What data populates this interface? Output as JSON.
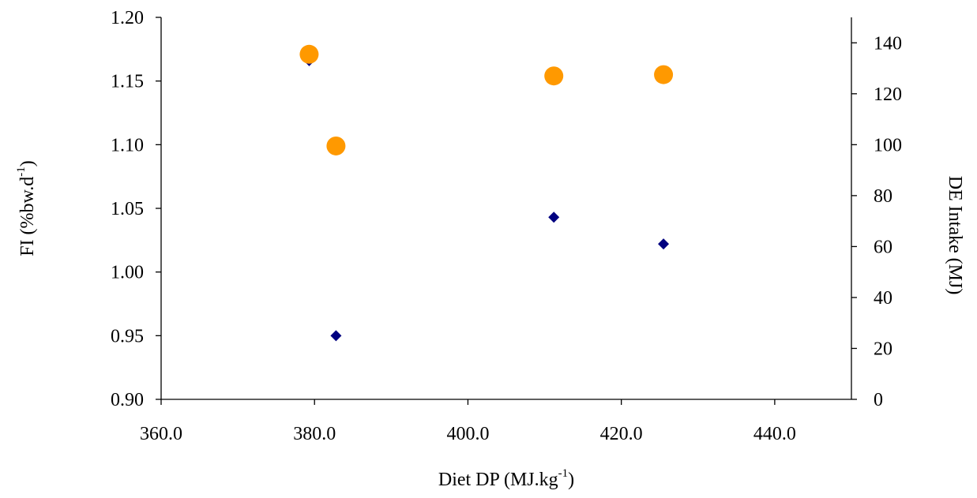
{
  "chart_data": {
    "type": "scatter",
    "title": "",
    "xlabel": {
      "text": "Diet DP (MJ.kg",
      "sup": "-1",
      "tail": ")"
    },
    "ylabel_left": {
      "text": "FI (%bw.d",
      "sup": "-1",
      "tail": ")"
    },
    "ylabel_right": "DE Intake (MJ)",
    "xlim": [
      360,
      450
    ],
    "ylim_left": [
      0.9,
      1.2
    ],
    "ylim_right": [
      0,
      150
    ],
    "x_ticks": [
      "360.0",
      "380.0",
      "400.0",
      "420.0",
      "440.0"
    ],
    "y_left_ticks": [
      "0.90",
      "0.95",
      "1.00",
      "1.05",
      "1.10",
      "1.15",
      "1.20"
    ],
    "y_right_ticks": [
      "0",
      "20",
      "40",
      "60",
      "80",
      "100",
      "120",
      "140"
    ],
    "grid": false,
    "legend": "none",
    "series": [
      {
        "axis": "left",
        "marker": "diamond",
        "color": "#000080",
        "points": [
          [
            379.3,
            1.166
          ],
          [
            382.8,
            0.95
          ],
          [
            411.2,
            1.043
          ],
          [
            425.5,
            1.022
          ]
        ]
      },
      {
        "axis": "right",
        "marker": "circle",
        "color": "#FF9900",
        "points": [
          [
            379.3,
            135.5
          ],
          [
            382.8,
            99.5
          ],
          [
            411.2,
            127.0
          ],
          [
            425.5,
            127.5
          ]
        ]
      }
    ]
  }
}
